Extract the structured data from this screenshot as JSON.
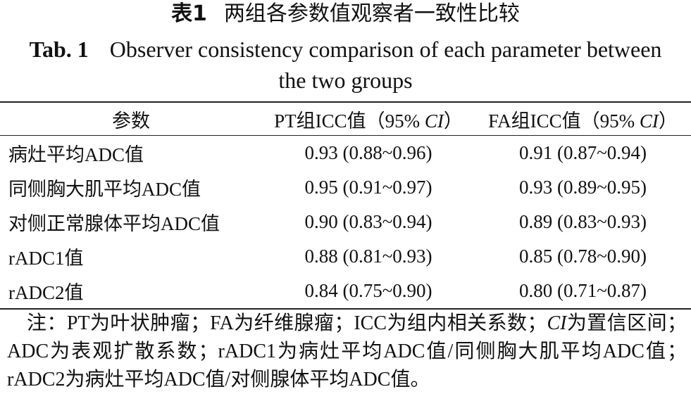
{
  "title_cn": {
    "label": "表1",
    "text": "两组各参数值观察者一致性比较"
  },
  "title_en": {
    "label": "Tab. 1",
    "text": "Observer consistency comparison of each parameter between the two groups"
  },
  "table": {
    "header": [
      [
        {
          "text": "参数"
        }
      ],
      [
        {
          "text": "PT组ICC值（95% "
        },
        {
          "text": "CI",
          "italic": true
        },
        {
          "text": "）"
        }
      ],
      [
        {
          "text": "FA组ICC值（95% "
        },
        {
          "text": "CI",
          "italic": true
        },
        {
          "text": "）"
        }
      ]
    ],
    "rows": [
      [
        "病灶平均ADC值",
        "0.93 (0.88~0.96)",
        "0.91 (0.87~0.94)"
      ],
      [
        "同侧胸大肌平均ADC值",
        "0.95 (0.91~0.97)",
        "0.93 (0.89~0.95)"
      ],
      [
        "对侧正常腺体平均ADC值",
        "0.90 (0.83~0.94)",
        "0.89 (0.83~0.93)"
      ],
      [
        "rADC1值",
        "0.88 (0.81~0.93)",
        "0.85 (0.78~0.90)"
      ],
      [
        "rADC2值",
        "0.84 (0.75~0.90)",
        "0.80 (0.71~0.87)"
      ]
    ]
  },
  "note": [
    {
      "text": "注：PT为叶状肿瘤；FA为纤维腺瘤；ICC为组内相关系数；"
    },
    {
      "text": "CI",
      "italic": true
    },
    {
      "text": "为置信区间；ADC为表观扩散系数；rADC1为病灶平均ADC值/同侧胸大肌平均ADC值；rADC2为病灶平均ADC值/对侧腺体平均ADC值。"
    }
  ]
}
